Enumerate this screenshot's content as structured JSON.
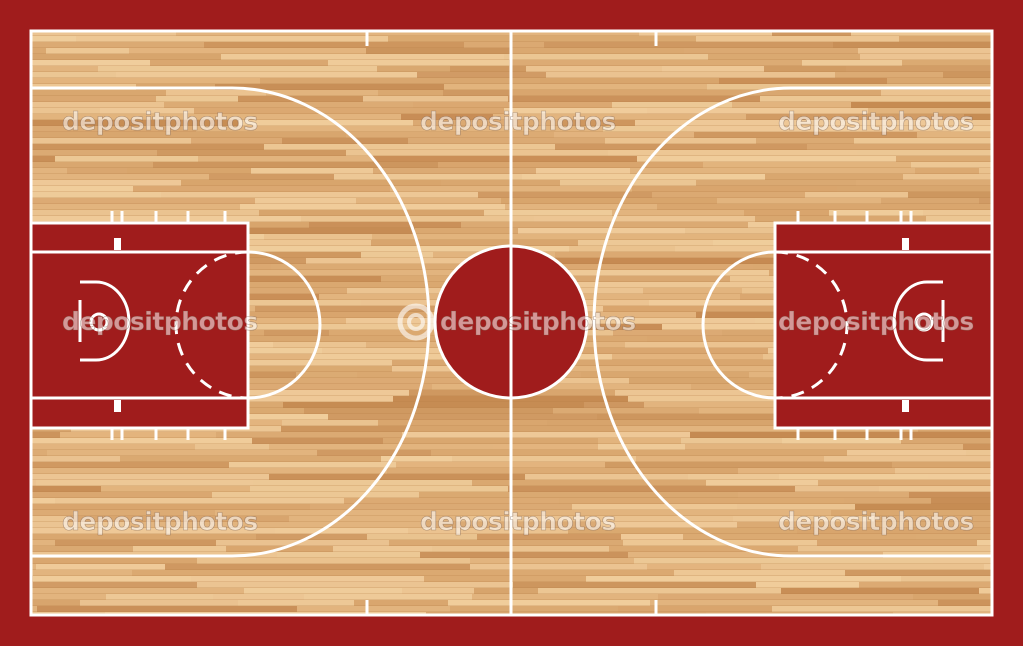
{
  "colors": {
    "surround": "#a01c1c",
    "paint": "#a01c1c",
    "wood_base": "#e2b47e",
    "wood_light": "#f0cd9c",
    "wood_mid": "#d7a46c",
    "wood_dark": "#c58a52",
    "line": "#ffffff"
  },
  "watermark": {
    "text": "depositphotos",
    "icon": "deposit-logo-icon"
  }
}
